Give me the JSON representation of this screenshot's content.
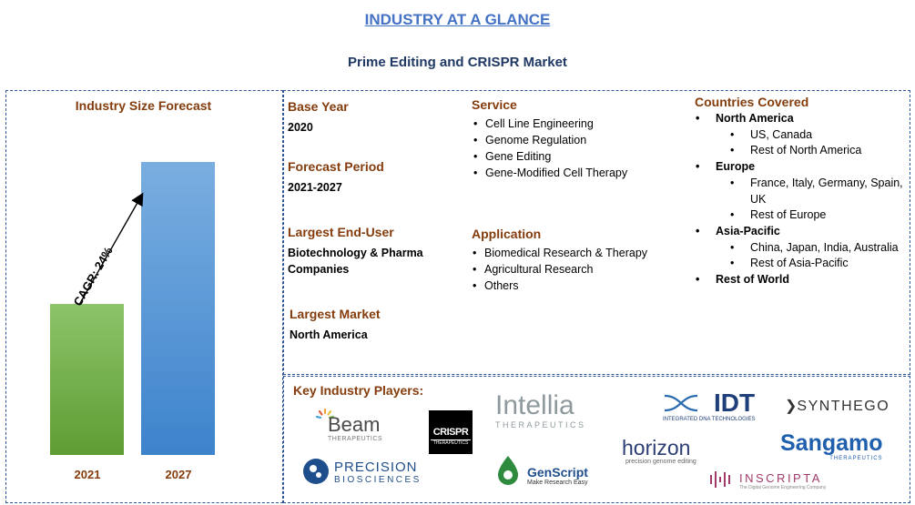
{
  "header": {
    "title": "INDUSTRY AT A GLANCE",
    "subtitle": "Prime Editing and CRISPR Market"
  },
  "forecast": {
    "heading": "Industry Size Forecast",
    "cagr_label": "CAGR: 24%",
    "colors": {
      "bar_2021": "#70ad47",
      "bar_2027": "#5b9bd5"
    }
  },
  "chart_data": {
    "type": "bar",
    "categories": [
      "2021",
      "2027"
    ],
    "values": [
      1.0,
      1.94
    ],
    "title": "Industry Size Forecast",
    "annotation": "CAGR: 24%"
  },
  "info": {
    "base_year": {
      "label": "Base Year",
      "value": "2020"
    },
    "forecast_period": {
      "label": "Forecast Period",
      "value": "2021-2027"
    },
    "largest_end_user": {
      "label": "Largest End-User",
      "value": "Biotechnology & Pharma Companies"
    },
    "largest_market": {
      "label": "Largest Market",
      "value": "North America"
    }
  },
  "service": {
    "heading": "Service",
    "items": [
      "Cell Line Engineering",
      "Genome Regulation",
      "Gene Editing",
      "Gene-Modified Cell Therapy"
    ]
  },
  "application": {
    "heading": "Application",
    "items": [
      "Biomedical Research & Therapy",
      "Agricultural Research",
      "Others"
    ]
  },
  "countries": {
    "heading": "Countries Covered",
    "na": "North America",
    "na_1": "US, Canada",
    "na_2": "Rest of North America",
    "eu": "Europe",
    "eu_1": "France, Italy, Germany, Spain, UK",
    "eu_2": "Rest of Europe",
    "ap": "Asia-Pacific",
    "ap_1": "China, Japan, India, Australia",
    "ap_2": "Rest of Asia-Pacific",
    "row": "Rest of World"
  },
  "players": {
    "heading": "Key Industry Players:",
    "beam": {
      "name": "Beam",
      "tag": "THERAPEUTICS"
    },
    "crispr": {
      "name": "CRISPR",
      "tag": "THERAPEUTICS"
    },
    "intellia": {
      "name": "Intellia",
      "tag": "THERAPEUTICS"
    },
    "idt": {
      "name": "IDT",
      "tag": "INTEGRATED DNA TECHNOLOGIES"
    },
    "synthego": {
      "name": "SYNTHEGO"
    },
    "precision": {
      "name1": "PRECISION",
      "name2": "BIOSCIENCES"
    },
    "genscript": {
      "name": "GenScript",
      "tag": "Make Research Easy"
    },
    "horizon": {
      "name": "horizon",
      "tag": "precision genome editing"
    },
    "sangamo": {
      "name": "Sangamo",
      "tag": "THERAPEUTICS"
    },
    "inscripta": {
      "name": "INSCRIPTA",
      "tag": "The Digital Genome Engineering Company"
    }
  }
}
